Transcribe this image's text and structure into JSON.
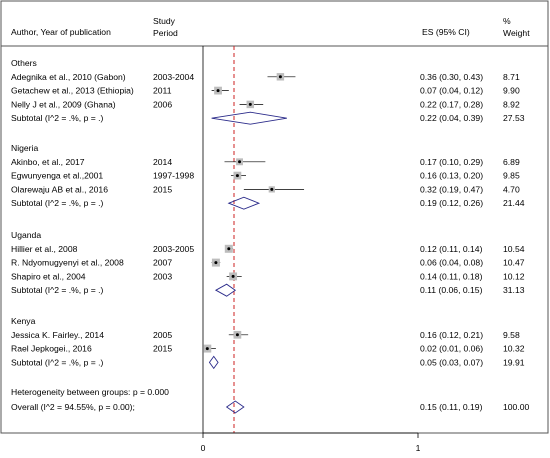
{
  "chart_data": {
    "type": "forest",
    "headers": {
      "author": "Author, Year of publication",
      "period_line1": "Study",
      "period_line2": "Period",
      "es": "ES (95% CI)",
      "weight_line1": "%",
      "weight_line2": "Weight"
    },
    "xlim": [
      -0.55,
      1.55
    ],
    "x_ticks": [
      {
        "value": 0,
        "label": "0"
      },
      {
        "value": 1,
        "label": "1"
      }
    ],
    "overall_effect_line": 0.15,
    "null_line": 0,
    "groups": [
      {
        "name": "Others",
        "studies": [
          {
            "author": "Adegnika et al., 2010 (Gabon)",
            "period": "2003-2004",
            "es": 0.36,
            "lo": 0.3,
            "hi": 0.43,
            "es_text": "0.36 (0.30, 0.43)",
            "weight": "8.71"
          },
          {
            "author": "Getachew et al., 2013 (Ethiopia)",
            "period": "2011",
            "es": 0.07,
            "lo": 0.04,
            "hi": 0.12,
            "es_text": "0.07 (0.04, 0.12)",
            "weight": "9.90"
          },
          {
            "author": "Nelly J et al., 2009 (Ghana)",
            "period": "2006",
            "es": 0.22,
            "lo": 0.17,
            "hi": 0.28,
            "es_text": "0.22 (0.17, 0.28)",
            "weight": "8.92"
          }
        ],
        "subtotal": {
          "label": "Subtotal  (I^2 = .%, p = .)",
          "es": 0.22,
          "lo": 0.04,
          "hi": 0.39,
          "es_text": "0.22 (0.04, 0.39)",
          "weight": "27.53"
        }
      },
      {
        "name": "Nigeria",
        "studies": [
          {
            "author": "Akinbo, et al., 2017",
            "period": "2014",
            "es": 0.17,
            "lo": 0.1,
            "hi": 0.29,
            "es_text": "0.17 (0.10, 0.29)",
            "weight": "6.89"
          },
          {
            "author": "Egwunyenga et al.,2001",
            "period": "1997-1998",
            "es": 0.16,
            "lo": 0.13,
            "hi": 0.2,
            "es_text": "0.16 (0.13, 0.20)",
            "weight": "9.85"
          },
          {
            "author": "Olarewaju AB et al., 2016",
            "period": "2015",
            "es": 0.32,
            "lo": 0.19,
            "hi": 0.47,
            "es_text": "0.32 (0.19, 0.47)",
            "weight": "4.70"
          }
        ],
        "subtotal": {
          "label": "Subtotal  (I^2 = .%, p = .)",
          "es": 0.19,
          "lo": 0.12,
          "hi": 0.26,
          "es_text": "0.19 (0.12, 0.26)",
          "weight": "21.44"
        }
      },
      {
        "name": "Uganda",
        "studies": [
          {
            "author": "Hillier et al., 2008",
            "period": "2003-2005",
            "es": 0.12,
            "lo": 0.11,
            "hi": 0.14,
            "es_text": "0.12 (0.11, 0.14)",
            "weight": "10.54"
          },
          {
            "author": "R. Ndyomugyenyi et al., 2008",
            "period": "2007",
            "es": 0.06,
            "lo": 0.04,
            "hi": 0.08,
            "es_text": "0.06 (0.04, 0.08)",
            "weight": "10.47"
          },
          {
            "author": "Shapiro et al., 2004",
            "period": "2003",
            "es": 0.14,
            "lo": 0.11,
            "hi": 0.18,
            "es_text": "0.14 (0.11, 0.18)",
            "weight": "10.12"
          }
        ],
        "subtotal": {
          "label": "Subtotal  (I^2 = .%, p = .)",
          "es": 0.11,
          "lo": 0.06,
          "hi": 0.15,
          "es_text": "0.11 (0.06, 0.15)",
          "weight": "31.13"
        }
      },
      {
        "name": "Kenya",
        "studies": [
          {
            "author": "Jessica K. Fairley., 2014",
            "period": "2005",
            "es": 0.16,
            "lo": 0.12,
            "hi": 0.21,
            "es_text": "0.16 (0.12, 0.21)",
            "weight": "9.58"
          },
          {
            "author": "Rael Jepkogei., 2016",
            "period": "2015",
            "es": 0.02,
            "lo": 0.01,
            "hi": 0.06,
            "es_text": "0.02 (0.01, 0.06)",
            "weight": "10.32"
          }
        ],
        "subtotal": {
          "label": "Subtotal  (I^2 = .%, p = .)",
          "es": 0.05,
          "lo": 0.03,
          "hi": 0.07,
          "es_text": "0.05 (0.03, 0.07)",
          "weight": "19.91"
        }
      }
    ],
    "heterogeneity": "Heterogeneity between groups: p = 0.000",
    "overall": {
      "label": "Overall  (I^2 = 94.55%, p = 0.00);",
      "es": 0.15,
      "lo": 0.11,
      "hi": 0.19,
      "es_text": "0.15 (0.11, 0.19)",
      "weight": "100.00"
    },
    "colors": {
      "diamond": "#2b2b8a",
      "ref_line": "#cc2222",
      "marker_box": "#bdbdbd"
    }
  }
}
